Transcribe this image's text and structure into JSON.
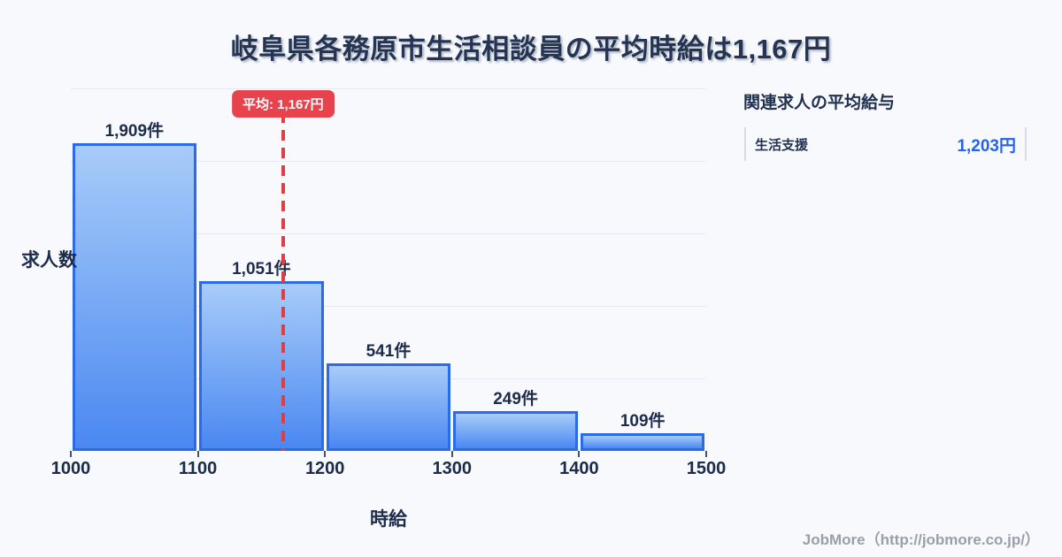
{
  "title": "岐阜県各務原市生活相談員の平均時給は1,167円",
  "chart_data": {
    "type": "bar",
    "subtype": "histogram",
    "categories": [
      "1000-1100",
      "1100-1200",
      "1200-1300",
      "1300-1400",
      "1400-1500"
    ],
    "values": [
      1909,
      1051,
      541,
      249,
      109
    ],
    "bar_labels": [
      "1,909件",
      "1,051件",
      "541件",
      "249件",
      "109件"
    ],
    "x_ticks": [
      "1000",
      "1100",
      "1200",
      "1300",
      "1400",
      "1500"
    ],
    "x_range": [
      1000,
      1500
    ],
    "xlabel": "時給",
    "ylabel": "求人数",
    "ylim": [
      0,
      2250
    ],
    "gridline_values": [
      450,
      900,
      1350,
      1800,
      2250
    ],
    "grid": "horizontal-only",
    "legend": "none",
    "average": {
      "value": 1167,
      "label": "平均: 1,167円"
    },
    "colors": {
      "bar_fill_top": "#a8ccf9",
      "bar_fill_bottom": "#4a88f1",
      "bar_border": "#2a6aec",
      "average_line": "#e23c44",
      "badge_bg": "#e8434c",
      "text_navy": "#1d2c4b",
      "gridline": "#e4e9f2",
      "background": "#f7f9fc"
    }
  },
  "side_panel": {
    "heading": "関連求人の平均給与",
    "rows": [
      {
        "label": "生活支援",
        "value": "1,203円"
      }
    ]
  },
  "footer": {
    "credit": "JobMore（http://jobmore.co.jp/）"
  }
}
